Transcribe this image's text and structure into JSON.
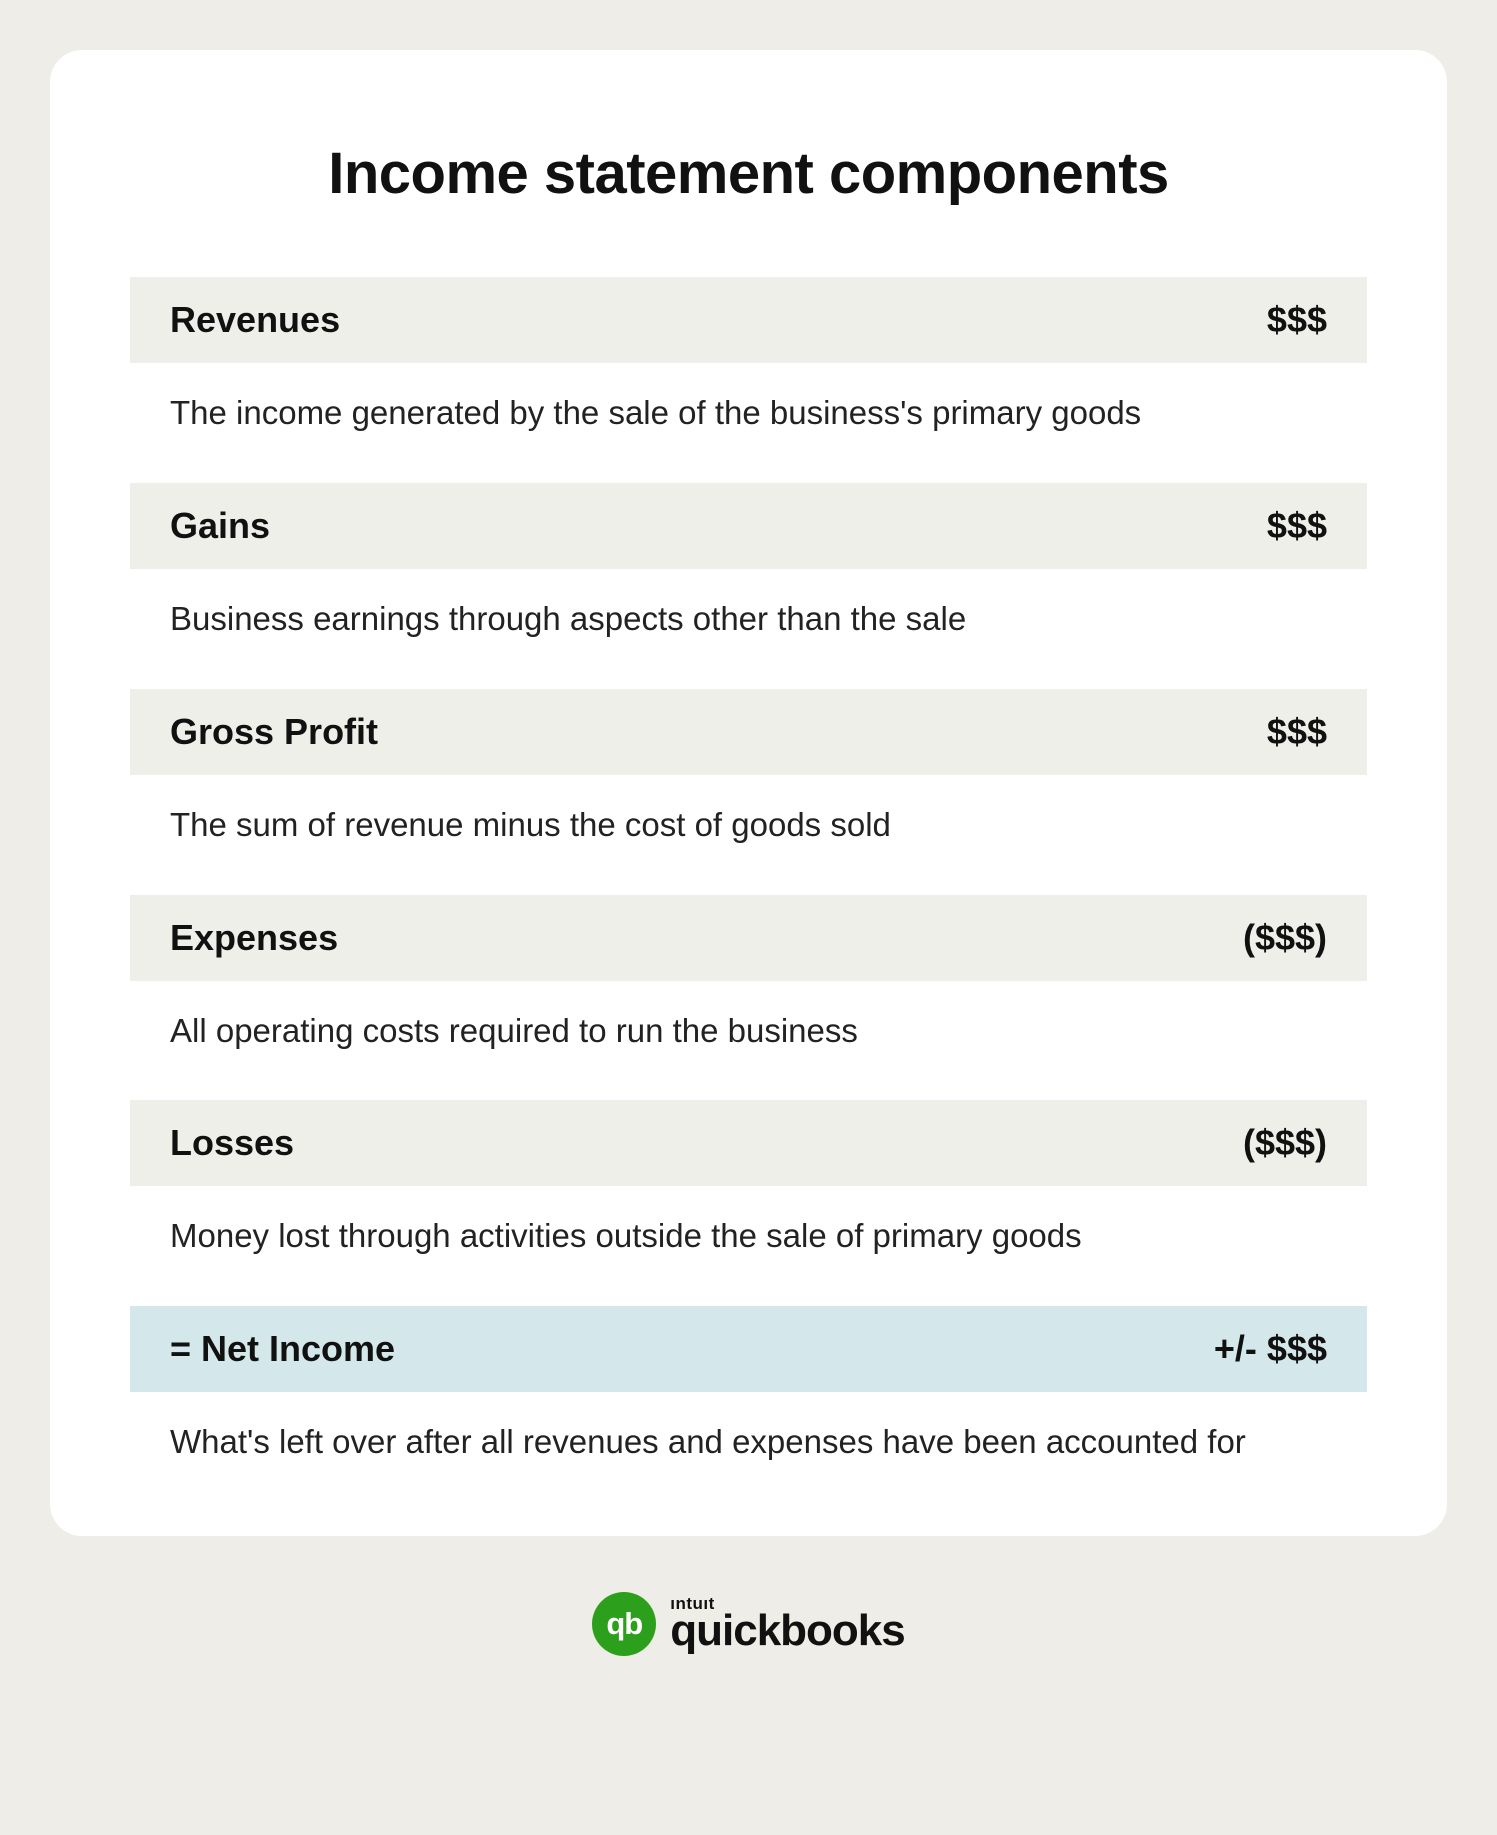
{
  "title": "Income statement components",
  "rows": [
    {
      "label": "Revenues",
      "value": "$$$",
      "desc": "The income generated by the sale of the business's primary goods",
      "highlight": false
    },
    {
      "label": "Gains",
      "value": "$$$",
      "desc": "Business earnings through aspects other than the sale",
      "highlight": false
    },
    {
      "label": "Gross Profit",
      "value": "$$$",
      "desc": "The sum of revenue minus the cost of goods sold",
      "highlight": false
    },
    {
      "label": "Expenses",
      "value": "($$$)",
      "desc": "All operating costs required to run the business",
      "highlight": false
    },
    {
      "label": "Losses",
      "value": "($$$)",
      "desc": "Money lost through activities outside the sale of primary goods",
      "highlight": false
    },
    {
      "label": "= Net Income",
      "value": "+/- $$$",
      "desc": "What's left over after all revenues and expenses have been accounted for",
      "highlight": true
    }
  ],
  "brand": {
    "parent": "ıntuıt",
    "name": "quickbooks",
    "mark": "qb",
    "colors": {
      "accent": "#2ca01c",
      "text": "#111111",
      "page_bg": "#eeede7",
      "card_bg": "#ffffff",
      "row_bg": "#efefea",
      "highlight_bg": "#d4e7ea"
    }
  }
}
